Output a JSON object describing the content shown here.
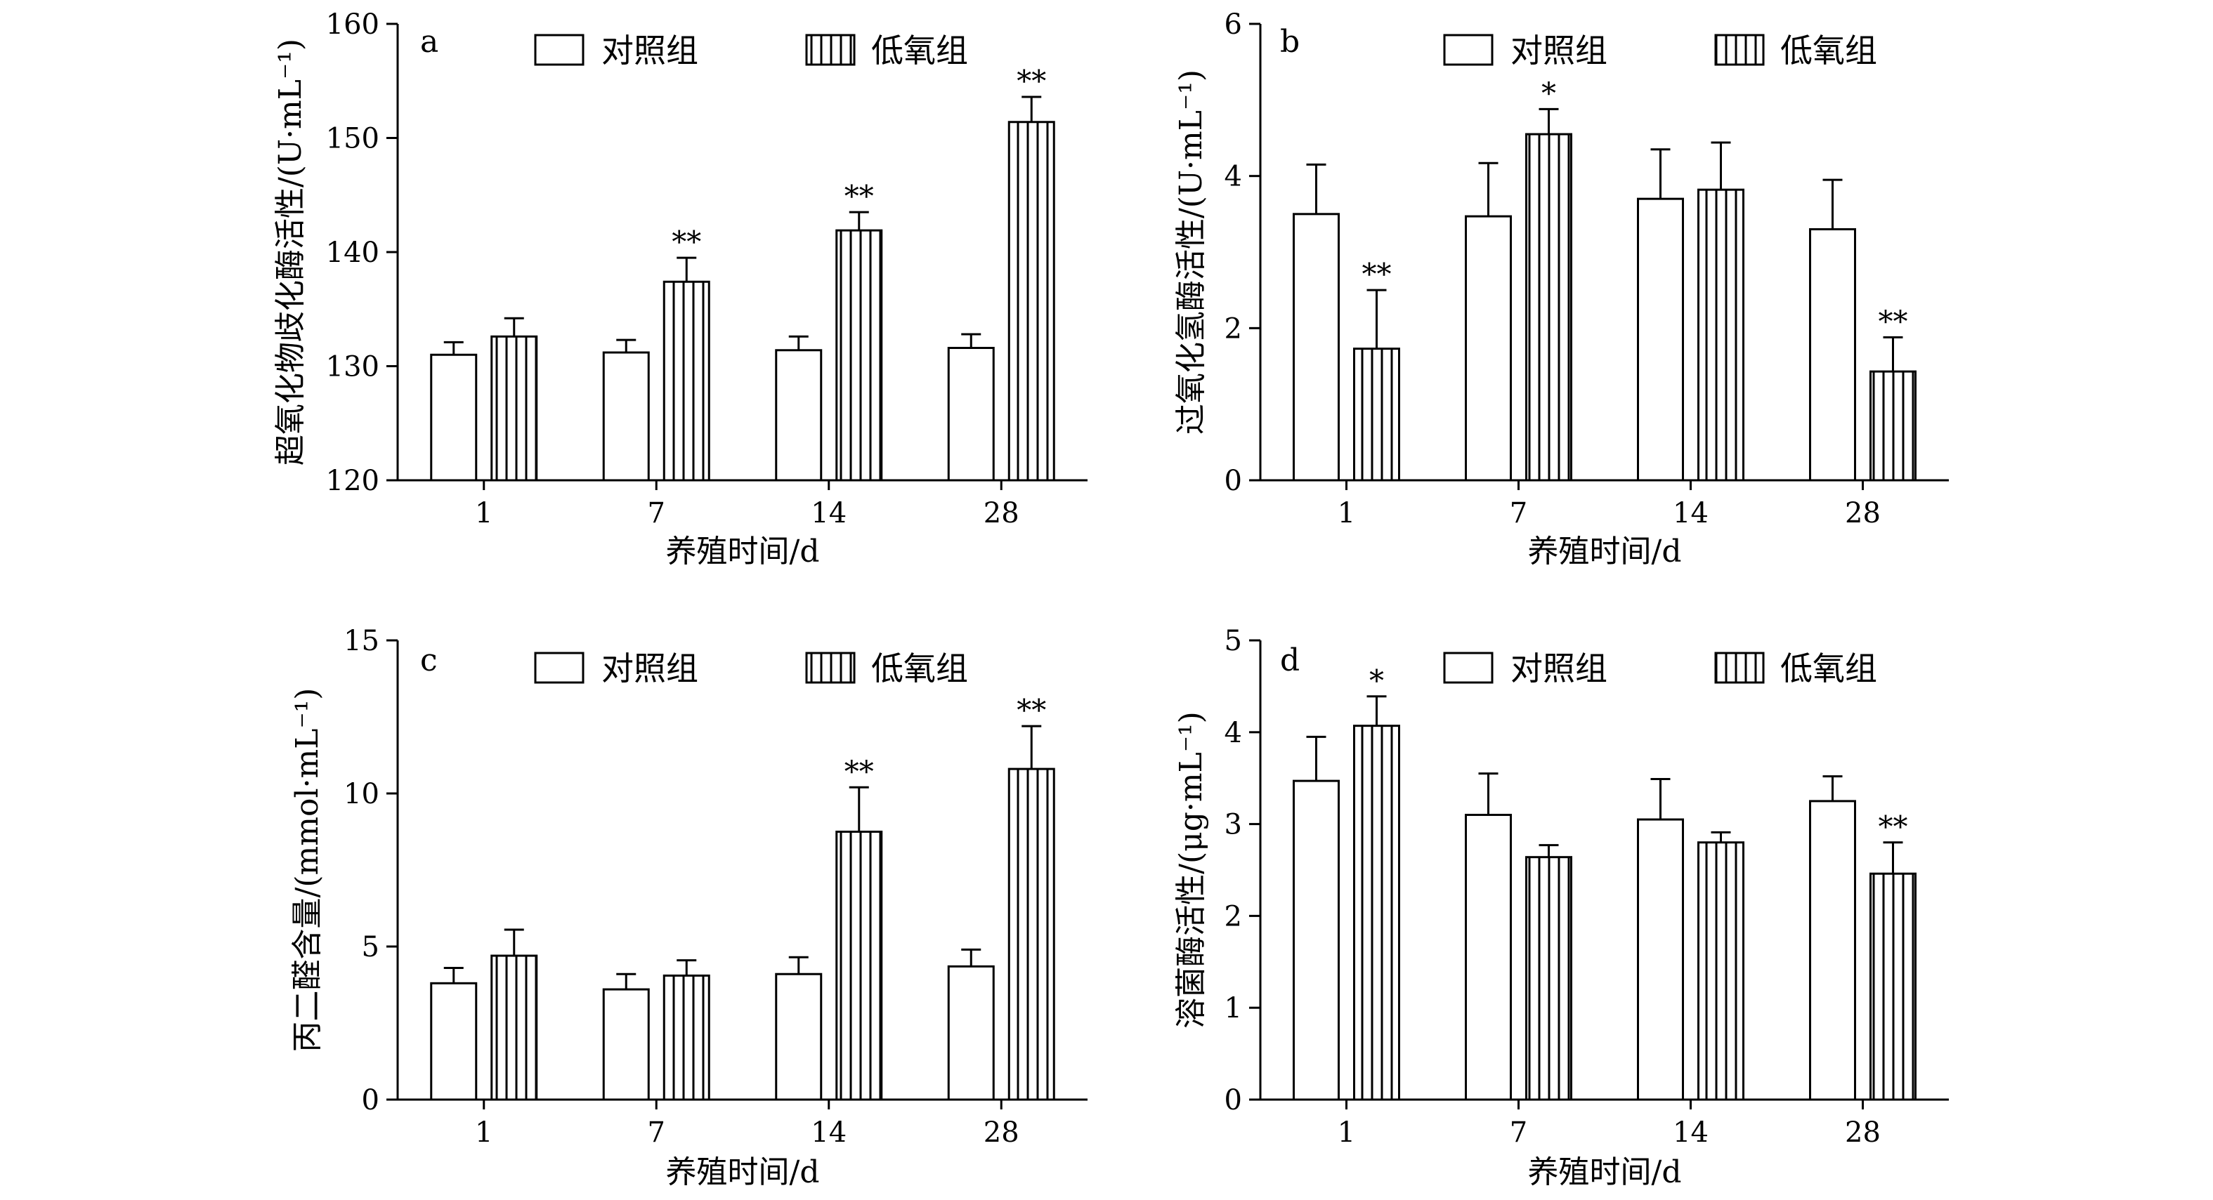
{
  "legend": {
    "control": "对照组",
    "hypoxia": "低氧组"
  },
  "chart_data": [
    {
      "type": "bar",
      "panel": "a",
      "categories": [
        "1",
        "7",
        "14",
        "28"
      ],
      "xlabel": "养殖时间/d",
      "ylabel": "超氧化物歧化酶活性/(U·mL⁻¹)",
      "ylim": [
        120,
        160
      ],
      "yticks": [
        "120",
        "130",
        "140",
        "150",
        "160"
      ],
      "ytick_values": [
        120,
        130,
        140,
        150,
        160
      ],
      "series": [
        {
          "name": "对照组",
          "values": [
            131.0,
            131.2,
            131.4,
            131.6
          ],
          "errors": [
            1.1,
            1.1,
            1.2,
            1.2
          ],
          "sig": [
            "",
            "",
            "",
            ""
          ]
        },
        {
          "name": "低氧组",
          "values": [
            132.6,
            137.4,
            141.9,
            151.4
          ],
          "errors": [
            1.6,
            2.1,
            1.6,
            2.2
          ],
          "sig": [
            "",
            "**",
            "**",
            "**"
          ]
        }
      ]
    },
    {
      "type": "bar",
      "panel": "b",
      "categories": [
        "1",
        "7",
        "14",
        "28"
      ],
      "xlabel": "养殖时间/d",
      "ylabel": "过氧化氢酶活性/(U·mL⁻¹)",
      "ylim": [
        0,
        6
      ],
      "yticks": [
        "0",
        "2",
        "4",
        "6"
      ],
      "ytick_values": [
        0,
        2,
        4,
        6
      ],
      "series": [
        {
          "name": "对照组",
          "values": [
            3.5,
            3.47,
            3.7,
            3.3
          ],
          "errors": [
            0.65,
            0.7,
            0.65,
            0.65
          ],
          "sig": [
            "",
            "",
            "",
            ""
          ]
        },
        {
          "name": "低氧组",
          "values": [
            1.73,
            4.55,
            3.82,
            1.43
          ],
          "errors": [
            0.77,
            0.33,
            0.62,
            0.45
          ],
          "sig": [
            "**",
            "*",
            "",
            "**"
          ]
        }
      ]
    },
    {
      "type": "bar",
      "panel": "c",
      "categories": [
        "1",
        "7",
        "14",
        "28"
      ],
      "xlabel": "养殖时间/d",
      "ylabel": "丙二醛含量/(mmol·mL⁻¹)",
      "ylim": [
        0,
        15
      ],
      "yticks": [
        "0",
        "5",
        "10",
        "15"
      ],
      "ytick_values": [
        0,
        5,
        10,
        15
      ],
      "series": [
        {
          "name": "对照组",
          "values": [
            3.8,
            3.6,
            4.1,
            4.35
          ],
          "errors": [
            0.5,
            0.5,
            0.55,
            0.55
          ],
          "sig": [
            "",
            "",
            "",
            ""
          ]
        },
        {
          "name": "低氧组",
          "values": [
            4.7,
            4.05,
            8.75,
            10.8
          ],
          "errors": [
            0.85,
            0.5,
            1.45,
            1.4
          ],
          "sig": [
            "",
            "",
            "**",
            "**"
          ]
        }
      ]
    },
    {
      "type": "bar",
      "panel": "d",
      "categories": [
        "1",
        "7",
        "14",
        "28"
      ],
      "xlabel": "养殖时间/d",
      "ylabel": "溶菌酶活性/(μg·mL⁻¹)",
      "ylim": [
        0,
        5
      ],
      "yticks": [
        "0",
        "1",
        "2",
        "3",
        "4",
        "5"
      ],
      "ytick_values": [
        0,
        1,
        2,
        3,
        4,
        5
      ],
      "series": [
        {
          "name": "对照组",
          "values": [
            3.47,
            3.1,
            3.05,
            3.25
          ],
          "errors": [
            0.48,
            0.45,
            0.44,
            0.27
          ],
          "sig": [
            "",
            "",
            "",
            ""
          ]
        },
        {
          "name": "低氧组",
          "values": [
            4.07,
            2.64,
            2.8,
            2.46
          ],
          "errors": [
            0.32,
            0.13,
            0.11,
            0.34
          ],
          "sig": [
            "*",
            "",
            "",
            "**"
          ]
        }
      ]
    }
  ]
}
